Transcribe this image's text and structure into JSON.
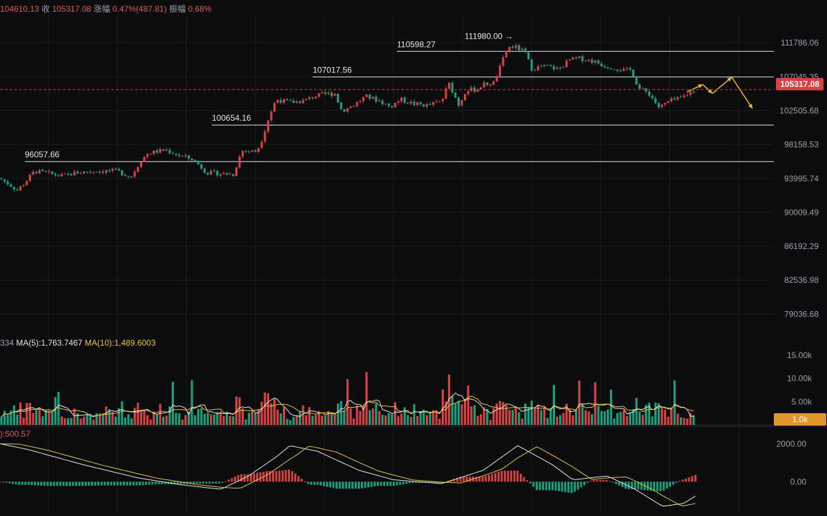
{
  "header": {
    "open_value": "104610.13",
    "close_label": "收",
    "close_value": "105317.08",
    "change_label": "涨幅",
    "change_value": "0.47%(487.81)",
    "amp_label": "振幅",
    "amp_value": "0.68%"
  },
  "volume_header": {
    "prefix": "334",
    "ma5": "MA(5):1,763.7467",
    "ma10": "MA(10):1,489.6003"
  },
  "macd_header": "):500.57",
  "current_price_tag": "105317.08",
  "volume_tag": "1.0k",
  "colors": {
    "up": "#d44242",
    "down": "#1f9e7e",
    "forecast": "#f2b72a",
    "ma_white": "#e6e6e6",
    "ma_yellow": "#e8c43a",
    "background": "#0b0c0e"
  },
  "chart_data": [
    {
      "type": "candlestick",
      "y_axis_ticks": [
        "111786.06",
        "107045.35",
        "102505.68",
        "98158.53",
        "93995.74",
        "90009.49",
        "86192.29",
        "82536.98",
        "79036.68"
      ],
      "ylim": [
        77000,
        114000
      ],
      "scale": "log",
      "levels": [
        {
          "label": "110598.27",
          "value": 110598.27
        },
        {
          "label": "107017.56",
          "value": 107017.56
        },
        {
          "label": "100654.16",
          "value": 100654.16
        },
        {
          "label": "96057.66",
          "value": 96057.66
        }
      ],
      "high_marker": {
        "label": "111980.00",
        "value": 111980.0
      },
      "current_price": 105317.08,
      "anchors": [
        [
          0,
          94000
        ],
        [
          15,
          93200
        ],
        [
          25,
          92600
        ],
        [
          35,
          93400
        ],
        [
          50,
          94900
        ],
        [
          70,
          94600
        ],
        [
          90,
          94300
        ],
        [
          110,
          94700
        ],
        [
          140,
          94900
        ],
        [
          170,
          94900
        ],
        [
          190,
          94200
        ],
        [
          205,
          96300
        ],
        [
          215,
          97100
        ],
        [
          240,
          97500
        ],
        [
          260,
          96800
        ],
        [
          280,
          96300
        ],
        [
          300,
          94700
        ],
        [
          320,
          94600
        ],
        [
          338,
          94500
        ],
        [
          350,
          97400
        ],
        [
          372,
          97300
        ],
        [
          380,
          99000
        ],
        [
          390,
          101800
        ],
        [
          400,
          104000
        ],
        [
          420,
          103600
        ],
        [
          440,
          103800
        ],
        [
          455,
          104400
        ],
        [
          470,
          104700
        ],
        [
          485,
          104800
        ],
        [
          495,
          102500
        ],
        [
          510,
          103100
        ],
        [
          530,
          104400
        ],
        [
          550,
          103800
        ],
        [
          565,
          103000
        ],
        [
          580,
          104000
        ],
        [
          600,
          103400
        ],
        [
          620,
          103200
        ],
        [
          640,
          103800
        ],
        [
          650,
          106200
        ],
        [
          665,
          103200
        ],
        [
          675,
          105300
        ],
        [
          690,
          105300
        ],
        [
          700,
          106000
        ],
        [
          715,
          106200
        ],
        [
          725,
          108500
        ],
        [
          735,
          111100
        ],
        [
          745,
          111300
        ],
        [
          760,
          110500
        ],
        [
          770,
          108200
        ],
        [
          790,
          108500
        ],
        [
          810,
          108100
        ],
        [
          825,
          109400
        ],
        [
          840,
          109600
        ],
        [
          860,
          109200
        ],
        [
          875,
          108600
        ],
        [
          890,
          108300
        ],
        [
          905,
          107900
        ],
        [
          915,
          108000
        ],
        [
          925,
          105500
        ],
        [
          940,
          104800
        ],
        [
          955,
          102900
        ],
        [
          970,
          103800
        ],
        [
          985,
          104100
        ],
        [
          1000,
          105000
        ],
        [
          1010,
          105300
        ]
      ],
      "forecast_path": [
        [
          995,
          105000
        ],
        [
          1018,
          106000
        ],
        [
          1032,
          104800
        ],
        [
          1060,
          107000
        ],
        [
          1090,
          102800
        ]
      ]
    },
    {
      "type": "bar",
      "name": "volume",
      "y_axis_ticks": [
        "15.00k",
        "10.00k",
        "5.00k"
      ],
      "ylim": [
        0,
        16500
      ],
      "series": [
        {
          "name": "MA(5)"
        },
        {
          "name": "MA(10)"
        }
      ]
    },
    {
      "type": "bar",
      "name": "macd",
      "y_axis_ticks": [
        "2000.00",
        "0.00"
      ],
      "ylim": [
        -1700,
        2300
      ]
    }
  ]
}
